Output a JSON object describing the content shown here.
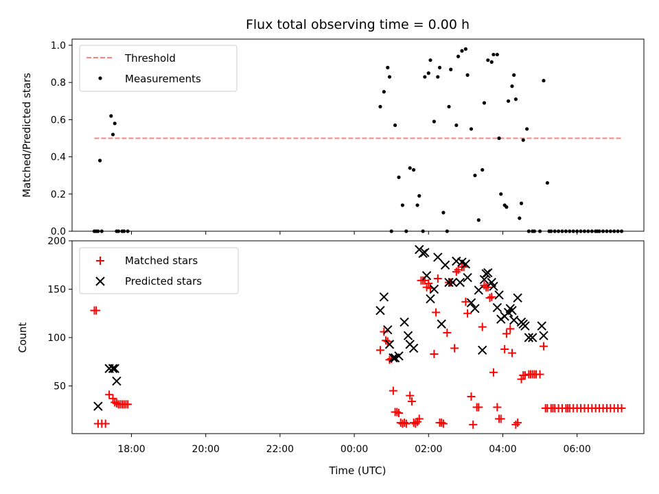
{
  "chart_data": [
    {
      "type": "scatter",
      "title": "Flux total observing time = 0.00 h",
      "xlabel": "",
      "ylabel": "Matched/Predicted stars",
      "ylim": [
        0,
        1.0
      ],
      "yticks": [
        "0.0",
        "0.2",
        "0.4",
        "0.6",
        "0.8",
        "1.0"
      ],
      "xlim_hours": [
        16.4,
        31.8
      ],
      "x_unit": "hours (UTC, since 00:00 of first day)",
      "legend": {
        "placement": "top-left",
        "threshold_label": "Threshold",
        "measurements_label": "Measurements"
      },
      "threshold": {
        "value": 0.5,
        "x_start": 17.0,
        "x_end": 31.2,
        "color": "#ff7f7f"
      },
      "measurements": {
        "color": "#000000",
        "x": [
          17.0,
          17.05,
          17.1,
          17.15,
          17.2,
          17.45,
          17.5,
          17.55,
          17.6,
          17.65,
          17.75,
          17.8,
          17.9,
          24.7,
          24.8,
          24.9,
          24.95,
          25.0,
          25.1,
          25.2,
          25.3,
          25.4,
          25.5,
          25.6,
          25.7,
          25.75,
          25.85,
          25.9,
          26.0,
          26.05,
          26.15,
          26.25,
          26.3,
          26.4,
          26.5,
          26.55,
          26.6,
          26.75,
          26.8,
          26.9,
          27.0,
          27.05,
          27.15,
          27.25,
          27.35,
          27.45,
          27.5,
          27.6,
          27.7,
          27.75,
          27.85,
          27.9,
          27.95,
          28.05,
          28.1,
          28.15,
          28.25,
          28.3,
          28.35,
          28.45,
          28.5,
          28.55,
          28.65,
          28.7,
          28.8,
          28.85,
          29.0,
          29.1,
          29.2,
          29.25,
          29.3,
          29.4,
          29.5,
          29.6,
          29.7,
          29.8,
          29.9,
          30.0,
          30.1,
          30.2,
          30.3,
          30.4,
          30.5,
          30.55,
          30.6,
          30.7,
          30.8,
          30.9,
          31.0,
          31.1,
          31.2
        ],
        "y": [
          0.0,
          0.0,
          0.0,
          0.38,
          0.0,
          0.62,
          0.52,
          0.58,
          0.0,
          0.0,
          0.0,
          0.0,
          0.0,
          0.67,
          0.75,
          0.88,
          0.83,
          0.0,
          0.57,
          0.29,
          0.14,
          0.0,
          0.34,
          0.33,
          0.14,
          0.19,
          0.0,
          0.83,
          0.85,
          0.92,
          0.59,
          0.83,
          0.88,
          0.1,
          0.0,
          0.67,
          0.87,
          0.57,
          0.94,
          0.97,
          0.98,
          0.84,
          0.55,
          0.3,
          0.06,
          0.33,
          0.69,
          0.92,
          0.91,
          0.95,
          0.95,
          0.5,
          0.2,
          0.14,
          0.13,
          0.7,
          0.78,
          0.84,
          0.71,
          0.07,
          0.15,
          0.49,
          0.55,
          0.0,
          0.0,
          0.0,
          0.0,
          0.81,
          0.26,
          0.0,
          0.0,
          0.0,
          0.0,
          0.0,
          0.0,
          0.0,
          0.0,
          0.0,
          0.0,
          0.0,
          0.0,
          0.0,
          0.0,
          0.0,
          0.0,
          0.0,
          0.0,
          0.0,
          0.0,
          0.0,
          0.0
        ]
      }
    },
    {
      "type": "scatter",
      "title": "",
      "xlabel": "Time (UTC)",
      "ylabel": "Count",
      "ylim": [
        0,
        200
      ],
      "yticks": [
        "50",
        "100",
        "150",
        "200"
      ],
      "xticks": [
        "18:00",
        "20:00",
        "22:00",
        "00:00",
        "02:00",
        "04:00",
        "06:00"
      ],
      "xlim_hours": [
        16.4,
        31.8
      ],
      "legend": {
        "placement": "top-left",
        "matched_label": "Matched stars",
        "predicted_label": "Predicted stars"
      },
      "series": [
        {
          "name": "Matched stars",
          "marker": "+",
          "color": "#ff0000",
          "x": [
            17.0,
            17.05,
            17.1,
            17.2,
            17.3,
            17.4,
            17.5,
            17.55,
            17.6,
            17.65,
            17.7,
            17.75,
            17.8,
            17.85,
            17.9,
            24.7,
            24.8,
            24.85,
            24.9,
            24.95,
            25.0,
            25.05,
            25.1,
            25.15,
            25.2,
            25.25,
            25.3,
            25.35,
            25.4,
            25.5,
            25.55,
            25.6,
            25.65,
            25.7,
            25.75,
            25.8,
            25.85,
            25.9,
            25.95,
            26.0,
            26.05,
            26.15,
            26.2,
            26.25,
            26.3,
            26.35,
            26.4,
            26.5,
            26.55,
            26.6,
            26.7,
            26.75,
            26.8,
            26.9,
            26.95,
            27.0,
            27.05,
            27.15,
            27.2,
            27.3,
            27.35,
            27.45,
            27.5,
            27.55,
            27.6,
            27.65,
            27.7,
            27.75,
            27.85,
            27.9,
            27.95,
            28.05,
            28.1,
            28.2,
            28.25,
            28.35,
            28.4,
            28.5,
            28.55,
            28.6,
            28.7,
            28.75,
            28.8,
            28.85,
            28.9,
            29.0,
            29.1,
            29.15,
            29.2,
            29.3,
            29.35,
            29.4,
            29.5,
            29.6,
            29.7,
            29.75,
            29.8,
            29.9,
            30.0,
            30.1,
            30.2,
            30.3,
            30.4,
            30.5,
            30.6,
            30.7,
            30.8,
            30.9,
            31.0,
            31.1,
            31.2
          ],
          "y": [
            128,
            128,
            11,
            11,
            11,
            41,
            37,
            33,
            32,
            31,
            31,
            31,
            31,
            31,
            31,
            87,
            106,
            97,
            96,
            77,
            78,
            45,
            23,
            23,
            22,
            12,
            11,
            12,
            11,
            40,
            34,
            12,
            11,
            13,
            16,
            159,
            159,
            159,
            152,
            156,
            151,
            83,
            126,
            161,
            12,
            12,
            11,
            105,
            157,
            157,
            89,
            168,
            170,
            173,
            173,
            137,
            125,
            39,
            10,
            28,
            28,
            111,
            154,
            152,
            152,
            141,
            142,
            64,
            28,
            16,
            16,
            88,
            104,
            109,
            84,
            10,
            12,
            57,
            61,
            61,
            62,
            62,
            62,
            62,
            62,
            62,
            91,
            27,
            27,
            27,
            27,
            27,
            27,
            27,
            27,
            27,
            27,
            27,
            27,
            27,
            27,
            27,
            27,
            27,
            27,
            27,
            27,
            27,
            27,
            27,
            27
          ],
          "unit": "count"
        },
        {
          "name": "Predicted stars",
          "marker": "x",
          "color": "#000000",
          "x": [
            17.1,
            17.4,
            17.5,
            17.55,
            17.6,
            24.7,
            24.8,
            24.9,
            24.95,
            25.05,
            25.1,
            25.2,
            25.35,
            25.45,
            25.5,
            25.6,
            25.75,
            25.85,
            25.9,
            25.95,
            26.05,
            26.15,
            26.25,
            26.35,
            26.45,
            26.55,
            26.65,
            26.75,
            26.85,
            26.9,
            27.0,
            27.05,
            27.15,
            27.25,
            27.35,
            27.45,
            27.5,
            27.55,
            27.6,
            27.7,
            27.75,
            27.85,
            27.9,
            27.95,
            28.05,
            28.15,
            28.2,
            28.25,
            28.3,
            28.4,
            28.5,
            28.55,
            28.6,
            28.7,
            28.8,
            29.05,
            29.1
          ],
          "y": [
            29,
            68,
            68,
            68,
            55,
            128,
            142,
            108,
            93,
            79,
            79,
            81,
            116,
            102,
            93,
            89,
            191,
            187,
            188,
            164,
            140,
            150,
            183,
            114,
            175,
            157,
            157,
            179,
            157,
            178,
            176,
            162,
            136,
            130,
            149,
            87,
            160,
            166,
            167,
            157,
            153,
            131,
            144,
            119,
            122,
            126,
            130,
            128,
            118,
            141,
            116,
            114,
            112,
            100,
            100,
            112,
            102
          ],
          "unit": "count"
        }
      ]
    }
  ]
}
